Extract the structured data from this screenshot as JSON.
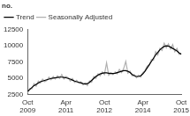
{
  "chart_data": {
    "type": "line",
    "y_label": "no.",
    "categories": [
      "Oct 2009",
      null,
      null,
      null,
      null,
      null,
      null,
      null,
      null,
      null,
      null,
      null,
      null,
      null,
      null,
      null,
      null,
      null,
      "Apr 2011",
      null,
      null,
      null,
      null,
      null,
      null,
      null,
      null,
      null,
      null,
      null,
      null,
      null,
      null,
      null,
      null,
      null,
      "Oct 2012",
      null,
      null,
      null,
      null,
      null,
      null,
      null,
      null,
      null,
      null,
      null,
      null,
      null,
      null,
      null,
      null,
      null,
      "Apr 2014",
      null,
      null,
      null,
      null,
      null,
      null,
      null,
      null,
      null,
      null,
      null,
      null,
      null,
      null,
      null,
      null,
      null,
      "Oct 2015"
    ],
    "series": [
      {
        "name": "Trend",
        "color": "#000000",
        "values": [
          3000,
          3300,
          3600,
          3900,
          4100,
          4300,
          4500,
          4600,
          4700,
          4800,
          4900,
          5000,
          5050,
          5100,
          5150,
          5200,
          5200,
          5150,
          5100,
          5000,
          4900,
          4750,
          4600,
          4500,
          4400,
          4300,
          4200,
          4150,
          4200,
          4400,
          4700,
          5000,
          5300,
          5500,
          5700,
          5800,
          5850,
          5850,
          5800,
          5750,
          5750,
          5800,
          5900,
          6000,
          6100,
          6200,
          6200,
          6100,
          5900,
          5600,
          5400,
          5300,
          5300,
          5400,
          5700,
          6100,
          6600,
          7100,
          7600,
          8100,
          8600,
          9000,
          9400,
          9700,
          9900,
          10000,
          9950,
          9800,
          9600,
          9400,
          9200,
          8900,
          8700
        ]
      },
      {
        "name": "Seasonally Adjusted",
        "color": "#b0b0b0",
        "values": [
          2800,
          3500,
          3400,
          4200,
          3800,
          4600,
          4300,
          4900,
          4500,
          4700,
          5200,
          4800,
          5300,
          4900,
          5400,
          5000,
          5600,
          4900,
          5300,
          5100,
          4600,
          5000,
          4400,
          4700,
          4300,
          4500,
          4000,
          4300,
          3900,
          4600,
          4400,
          5300,
          5000,
          5700,
          5400,
          6000,
          5600,
          7400,
          5500,
          5900,
          5600,
          6000,
          5700,
          6400,
          5900,
          6500,
          7600,
          5800,
          6100,
          5400,
          5600,
          5100,
          5500,
          5200,
          5900,
          6200,
          6900,
          7000,
          7900,
          7800,
          9100,
          8600,
          9600,
          9300,
          10400,
          9700,
          10300,
          9500,
          10200,
          9100,
          9600,
          8700,
          8900
        ]
      }
    ],
    "ylim": [
      2500,
      12500
    ],
    "yticks": [
      2500,
      5000,
      7500,
      10000,
      12500
    ],
    "grid": false,
    "legend": "upper left"
  }
}
